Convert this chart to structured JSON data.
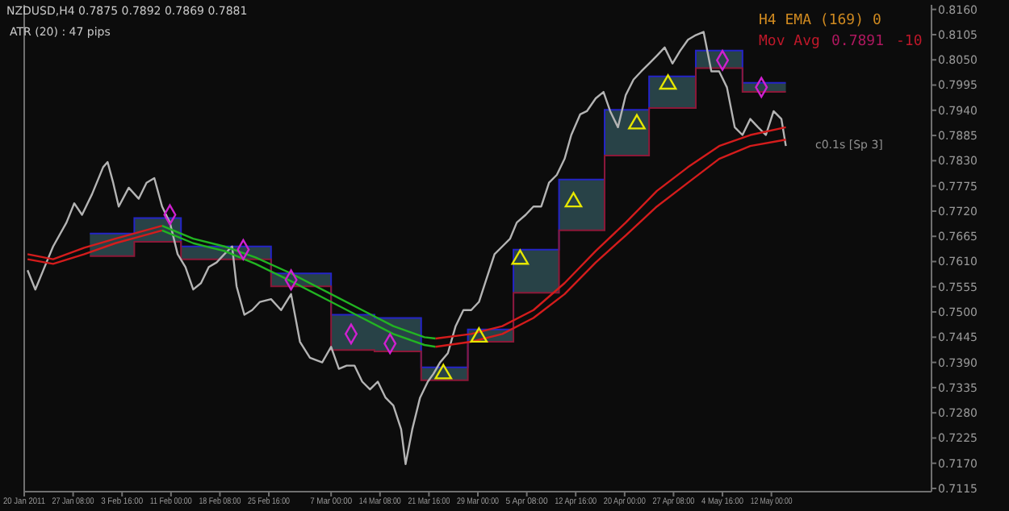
{
  "chart_data": {
    "type": "line",
    "title": "NZDUSD,H4  0.7875 0.7892 0.7869 0.7881",
    "annotations": [
      "ATR (20) :  47 pips",
      "H4 EMA (169) 0",
      "Mov Avg",
      "0.7891",
      "-10",
      "c0.1s [Sp 3]"
    ],
    "xlim": [
      "2011-01-20",
      "2011-06-05"
    ],
    "xticks": [
      {
        "value": "2011-01-20",
        "label": "20 Jan 2011"
      },
      {
        "value": "2011-01-27T08:00",
        "label": "27 Jan 08:00"
      },
      {
        "value": "2011-02-03T16:00",
        "label": "3 Feb 16:00"
      },
      {
        "value": "2011-02-11",
        "label": "11 Feb 00:00"
      },
      {
        "value": "2011-02-18T08:00",
        "label": "18 Feb 08:00"
      },
      {
        "value": "2011-02-25T16:00",
        "label": "25 Feb 16:00"
      },
      {
        "value": "2011-03-07",
        "label": "7 Mar 00:00"
      },
      {
        "value": "2011-03-14T08:00",
        "label": "14 Mar 08:00"
      },
      {
        "value": "2011-03-21T16:00",
        "label": "21 Mar 16:00"
      },
      {
        "value": "2011-03-29",
        "label": "29 Mar 00:00"
      },
      {
        "value": "2011-04-05T08:00",
        "label": "5 Apr 08:00"
      },
      {
        "value": "2011-04-12T16:00",
        "label": "12 Apr 16:00"
      },
      {
        "value": "2011-04-20",
        "label": "20 Apr 00:00"
      },
      {
        "value": "2011-04-27T08:00",
        "label": "27 Apr 08:00"
      },
      {
        "value": "2011-05-04T16:00",
        "label": "4 May 16:00"
      },
      {
        "value": "2011-05-12",
        "label": "12 May 00:00"
      }
    ],
    "ylim": [
      0.7108,
      0.817
    ],
    "yticks": [
      {
        "value": 0.816,
        "label": "0.8160"
      },
      {
        "value": 0.8105,
        "label": "0.8105"
      },
      {
        "value": 0.805,
        "label": "0.8050"
      },
      {
        "value": 0.7995,
        "label": "0.7995"
      },
      {
        "value": 0.794,
        "label": "0.7940"
      },
      {
        "value": 0.7885,
        "label": "0.7885"
      },
      {
        "value": 0.783,
        "label": "0.7830"
      },
      {
        "value": 0.7775,
        "label": "0.7775"
      },
      {
        "value": 0.772,
        "label": "0.7720"
      },
      {
        "value": 0.7665,
        "label": "0.7665"
      },
      {
        "value": 0.761,
        "label": "0.7610"
      },
      {
        "value": 0.7555,
        "label": "0.7555"
      },
      {
        "value": 0.75,
        "label": "0.7500"
      },
      {
        "value": 0.7445,
        "label": "0.7445"
      },
      {
        "value": 0.739,
        "label": "0.7390"
      },
      {
        "value": 0.7335,
        "label": "0.7335"
      },
      {
        "value": 0.728,
        "label": "0.7280"
      },
      {
        "value": 0.7225,
        "label": "0.7225"
      },
      {
        "value": 0.717,
        "label": "0.7170"
      },
      {
        "value": 0.7115,
        "label": "0.7115"
      }
    ],
    "series": [
      {
        "type": "step",
        "color": "#2424c8",
        "x": [
          "2011-01-29T20:00",
          "2011-02-05T12:00",
          "2011-02-12T12:00",
          "2011-02-26",
          "2011-03-07",
          "2011-03-13T12:00",
          "2011-03-20T12:00",
          "2011-03-27T12:00",
          "2011-04-03T08:00",
          "2011-04-10T04:00",
          "2011-04-17",
          "2011-04-23T16:00",
          "2011-04-30T16:00",
          "2011-05-07T16:00",
          "2011-05-14T04:00"
        ],
        "values": [
          0.7671,
          0.7705,
          0.7643,
          0.7584,
          0.7494,
          0.7487,
          0.7379,
          0.7462,
          0.7636,
          0.7789,
          0.7941,
          0.8014,
          0.807,
          0.8,
          0.8
        ],
        "upper": [
          0.7671,
          0.7705,
          0.7643,
          0.7584,
          0.7494,
          0.7487,
          0.7379,
          0.7462,
          0.7636,
          0.7789,
          0.7941,
          0.8014,
          0.807,
          0.8,
          0.8
        ],
        "lower": [
          0.7622,
          0.7653,
          0.7615,
          0.7556,
          0.7417,
          0.7414,
          0.7351,
          0.7435,
          0.7542,
          0.7678,
          0.7841,
          0.7945,
          0.8032,
          0.798,
          0.798
        ]
      },
      {
        "type": "step",
        "color": "#8c1838",
        "x": [
          "2011-01-29T20:00",
          "2011-02-05T12:00",
          "2011-02-12T12:00",
          "2011-02-26",
          "2011-03-07",
          "2011-03-13T12:00",
          "2011-03-20T12:00",
          "2011-03-27T12:00",
          "2011-04-03T08:00",
          "2011-04-10T04:00",
          "2011-04-17",
          "2011-04-23T16:00",
          "2011-04-30T16:00",
          "2011-05-07T16:00",
          "2011-05-14T04:00"
        ],
        "values": [
          0.7622,
          0.7653,
          0.7615,
          0.7556,
          0.7417,
          0.7414,
          0.7351,
          0.7435,
          0.7542,
          0.7678,
          0.7841,
          0.7945,
          0.8032,
          0.798,
          0.798
        ]
      },
      {
        "color": "#b4b4b4",
        "x": [
          "2011-01-20T12:00",
          "2011-01-21T16:00",
          "2011-01-23T08:00",
          "2011-01-24T08:00",
          "2011-01-26T08:00",
          "2011-01-27T12:00",
          "2011-01-28T16:00",
          "2011-01-30T04:00",
          "2011-01-31T20:00",
          "2011-02-01T12:00",
          "2011-02-02T08:00",
          "2011-02-03T04:00",
          "2011-02-04T16:00",
          "2011-02-06T04:00",
          "2011-02-07T08:00",
          "2011-02-08T12:00",
          "2011-02-09T16:00",
          "2011-02-10T20:00",
          "2011-02-12",
          "2011-02-13T04:00",
          "2011-02-14T08:00",
          "2011-02-15T12:00",
          "2011-02-16T16:00",
          "2011-02-17T20:00",
          "2011-02-19",
          "2011-02-20T04:00",
          "2011-02-20T20:00",
          "2011-02-22",
          "2011-02-23T04:00",
          "2011-02-24T08:00",
          "2011-02-26",
          "2011-02-27T12:00",
          "2011-03-01",
          "2011-03-02T08:00",
          "2011-03-03T20:00",
          "2011-03-05T16:00",
          "2011-03-07",
          "2011-03-08T04:00",
          "2011-03-09T08:00",
          "2011-03-10T12:00",
          "2011-03-11T16:00",
          "2011-03-12T20:00",
          "2011-03-14",
          "2011-03-15T04:00",
          "2011-03-16T08:00",
          "2011-03-17T12:00",
          "2011-03-18T04:00",
          "2011-03-19T04:00",
          "2011-03-20T08:00",
          "2011-03-21T12:00",
          "2011-03-22T08:00",
          "2011-03-23T08:00",
          "2011-03-24T12:00",
          "2011-03-25T16:00",
          "2011-03-26T20:00",
          "2011-03-28",
          "2011-03-29T04:00",
          "2011-03-30T08:00",
          "2011-03-31T12:00",
          "2011-04-01T16:00",
          "2011-04-02T20:00",
          "2011-04-03T20:00",
          "2011-04-05T04:00",
          "2011-04-06T08:00",
          "2011-04-07T12:00",
          "2011-04-08T16:00",
          "2011-04-09T20:00",
          "2011-04-11",
          "2011-04-12",
          "2011-04-13T08:00",
          "2011-04-14T08:00",
          "2011-04-15T16:00",
          "2011-04-16T20:00",
          "2011-04-17T20:00",
          "2011-04-19",
          "2011-04-20T04:00",
          "2011-04-21T08:00",
          "2011-04-22T12:00",
          "2011-04-23T16:00",
          "2011-04-24T20:00",
          "2011-04-26",
          "2011-04-27T04:00",
          "2011-04-28T08:00",
          "2011-04-29T12:00",
          "2011-04-30T16:00",
          "2011-05-01T20:00",
          "2011-05-03",
          "2011-05-04T04:00",
          "2011-05-05T08:00",
          "2011-05-06T12:00",
          "2011-05-07T16:00",
          "2011-05-08T20:00",
          "2011-05-10",
          "2011-05-11T04:00",
          "2011-05-12T08:00",
          "2011-05-13T12:00",
          "2011-05-14T04:00"
        ],
        "values": [
          0.7591,
          0.7549,
          0.7608,
          0.7643,
          0.7695,
          0.7737,
          0.7712,
          0.7757,
          0.7816,
          0.7827,
          0.7782,
          0.773,
          0.7771,
          0.7747,
          0.7782,
          0.7792,
          0.773,
          0.7695,
          0.7626,
          0.7598,
          0.7549,
          0.7563,
          0.7598,
          0.7608,
          0.7626,
          0.7643,
          0.7556,
          0.7494,
          0.7504,
          0.7522,
          0.7528,
          0.7504,
          0.7539,
          0.7435,
          0.74,
          0.739,
          0.7424,
          0.7376,
          0.7383,
          0.7383,
          0.7348,
          0.7331,
          0.7348,
          0.7313,
          0.7296,
          0.7244,
          0.7168,
          0.7244,
          0.7313,
          0.7348,
          0.7365,
          0.739,
          0.741,
          0.7469,
          0.7504,
          0.7504,
          0.7522,
          0.7574,
          0.7626,
          0.7643,
          0.766,
          0.7695,
          0.7712,
          0.773,
          0.773,
          0.7782,
          0.7799,
          0.7834,
          0.7886,
          0.7931,
          0.7938,
          0.7966,
          0.798,
          0.7938,
          0.7903,
          0.7973,
          0.8007,
          0.8025,
          0.8042,
          0.8059,
          0.8077,
          0.8042,
          0.807,
          0.8094,
          0.8104,
          0.8111,
          0.8025,
          0.8025,
          0.799,
          0.7903,
          0.7886,
          0.7921,
          0.7903,
          0.7886,
          0.7938,
          0.7921,
          0.7862
        ]
      },
      {
        "type": "line",
        "color": "#d41c1c",
        "x": [
          "2011-01-20T12:00",
          "2011-01-24T08:00",
          "2011-01-29",
          "2011-02-02T16:00",
          "2011-02-06T04:00",
          "2011-02-09T16:00"
        ],
        "values": [
          0.7626,
          0.7615,
          0.764,
          0.766,
          0.7674,
          0.7688
        ]
      },
      {
        "type": "line",
        "color": "#d41c1c",
        "x": [
          "2011-01-20T12:00",
          "2011-01-24T08:00",
          "2011-01-29",
          "2011-02-02T16:00",
          "2011-02-06T04:00",
          "2011-02-09T16:00"
        ],
        "values": [
          0.7615,
          0.7605,
          0.7626,
          0.765,
          0.7664,
          0.7678
        ]
      },
      {
        "type": "line",
        "color": "#22b422",
        "x": [
          "2011-02-09T16:00",
          "2011-02-14T08:00",
          "2011-02-19",
          "2011-02-23T16:00",
          "2011-03-01",
          "2011-03-07",
          "2011-03-11T16:00",
          "2011-03-16T08:00",
          "2011-03-21",
          "2011-03-22T16:00"
        ],
        "values": [
          0.7688,
          0.766,
          0.7643,
          0.7619,
          0.7584,
          0.7539,
          0.7504,
          0.7469,
          0.7445,
          0.7442
        ]
      },
      {
        "type": "line",
        "color": "#22b422",
        "x": [
          "2011-02-09T16:00",
          "2011-02-14T08:00",
          "2011-02-19",
          "2011-02-23T16:00",
          "2011-03-01",
          "2011-03-07",
          "2011-03-11T16:00",
          "2011-03-16T08:00",
          "2011-03-21",
          "2011-03-22T16:00"
        ],
        "values": [
          0.7678,
          0.765,
          0.7633,
          0.7605,
          0.7567,
          0.7522,
          0.7487,
          0.7452,
          0.7428,
          0.7424
        ]
      },
      {
        "type": "line",
        "color": "#d41c1c",
        "x": [
          "2011-03-22T16:00",
          "2011-03-28",
          "2011-04-01T16:00",
          "2011-04-06T08:00",
          "2011-04-11",
          "2011-04-15T16:00",
          "2011-04-20T04:00",
          "2011-04-24T20:00",
          "2011-04-29T12:00",
          "2011-05-04T04:00",
          "2011-05-08T20:00",
          "2011-05-14T04:00"
        ],
        "values": [
          0.7442,
          0.7452,
          0.7469,
          0.7504,
          0.7563,
          0.7633,
          0.7695,
          0.7764,
          0.7816,
          0.7862,
          0.7886,
          0.7903
        ]
      },
      {
        "type": "line",
        "color": "#d41c1c",
        "x": [
          "2011-03-22T16:00",
          "2011-03-28",
          "2011-04-01T16:00",
          "2011-04-06T08:00",
          "2011-04-11",
          "2011-04-15T16:00",
          "2011-04-20T04:00",
          "2011-04-24T20:00",
          "2011-04-29T12:00",
          "2011-05-04T04:00",
          "2011-05-08T20:00",
          "2011-05-14T04:00"
        ],
        "values": [
          0.7424,
          0.7435,
          0.7452,
          0.7487,
          0.7539,
          0.7608,
          0.7667,
          0.773,
          0.7782,
          0.7834,
          0.7862,
          0.7876
        ]
      },
      {
        "type": "scatter",
        "marker": "triangle",
        "color": "#e6e600",
        "x": [
          "2011-03-23T20:00",
          "2011-03-29T04:00",
          "2011-04-04T08:00",
          "2011-04-12T08:00",
          "2011-04-21T20:00",
          "2011-04-26T12:00"
        ],
        "values": [
          0.7365,
          0.7445,
          0.7615,
          0.774,
          0.791,
          0.7997
        ]
      },
      {
        "type": "scatter",
        "marker": "diamond",
        "color": "#d020d0",
        "x": [
          "2011-02-10T20:00",
          "2011-02-21T20:00",
          "2011-03-01",
          "2011-03-10",
          "2011-03-15T20:00",
          "2011-05-04T16:00",
          "2011-05-10T12:00"
        ],
        "values": [
          0.7712,
          0.7636,
          0.757,
          0.7452,
          0.7431,
          0.8049,
          0.799
        ]
      }
    ]
  }
}
